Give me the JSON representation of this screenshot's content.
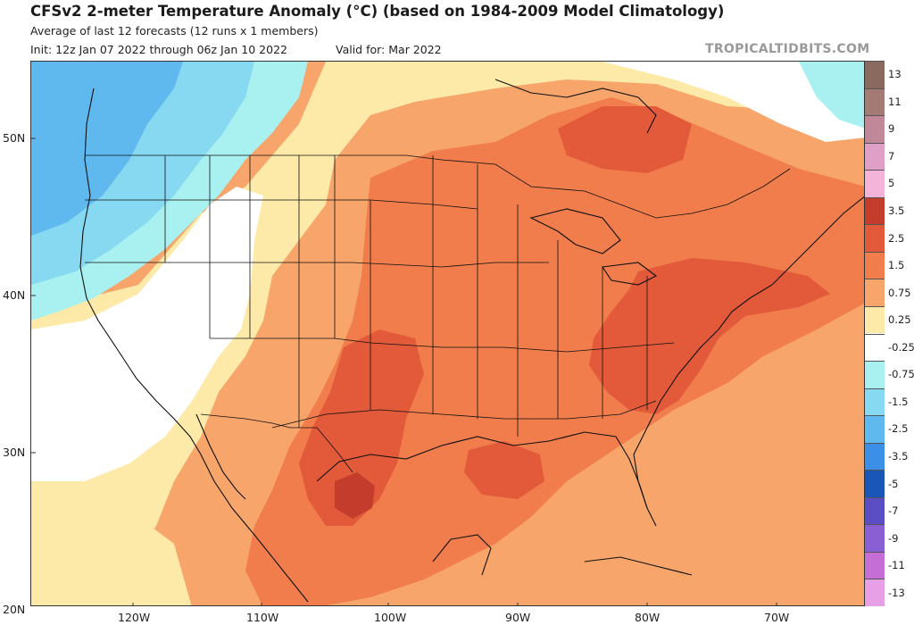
{
  "header": {
    "title": "CFSv2 2-meter Temperature Anomaly (°C) (based on 1984-2009 Model Climatology)",
    "subtitle": "Average of last 12 forecasts (12 runs x 1 members)",
    "init": "Init: 12z Jan 07 2022 through 06z Jan 10 2022",
    "valid": "Valid for: Mar 2022",
    "watermark": "TROPICALTIDBITS.COM"
  },
  "axes": {
    "lat_labels": [
      "50N",
      "40N",
      "30N",
      "20N"
    ],
    "lon_labels": [
      "120W",
      "110W",
      "100W",
      "90W",
      "80W",
      "70W"
    ]
  },
  "colorbar": {
    "levels": [
      {
        "label": "13",
        "color": "#8a6a5e"
      },
      {
        "label": "11",
        "color": "#a47a74"
      },
      {
        "label": "9",
        "color": "#c08898"
      },
      {
        "label": "7",
        "color": "#df9fc7"
      },
      {
        "label": "5",
        "color": "#f4b3d8"
      },
      {
        "label": "3.5",
        "color": "#c43c2c"
      },
      {
        "label": "2.5",
        "color": "#e25a3a"
      },
      {
        "label": "1.5",
        "color": "#f07d4b"
      },
      {
        "label": "0.75",
        "color": "#f7a56b"
      },
      {
        "label": "0.25",
        "color": "#fde9a8"
      },
      {
        "label": "-0.25",
        "color": "#ffffff"
      },
      {
        "label": "-0.75",
        "color": "#a9f0f0"
      },
      {
        "label": "-1.5",
        "color": "#86d9f0"
      },
      {
        "label": "-2.5",
        "color": "#5fb8ee"
      },
      {
        "label": "-3.5",
        "color": "#3b8fe6"
      },
      {
        "label": "-5",
        "color": "#1a55b8"
      },
      {
        "label": "-7",
        "color": "#5b4ec4"
      },
      {
        "label": "-9",
        "color": "#8b5fd4"
      },
      {
        "label": "-11",
        "color": "#c56fd6"
      },
      {
        "label": "-13",
        "color": "#e7a0e6"
      }
    ]
  }
}
